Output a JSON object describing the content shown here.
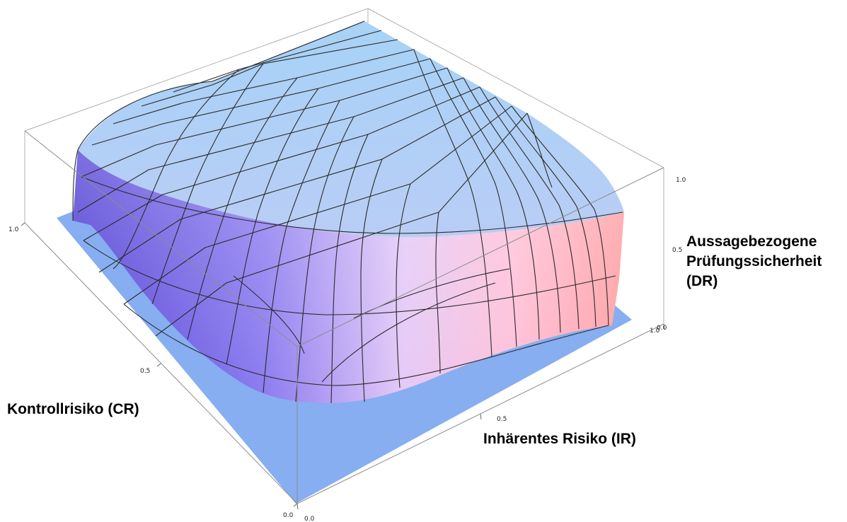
{
  "chart_data": {
    "type": "surface3d",
    "title": "",
    "xlabel": "Inhärentes Risiko (IR)",
    "ylabel": "Kontrollrisiko (CR)",
    "zlabel_lines": [
      "Aussagebezogene",
      "Prüfungssicherheit",
      "(DR)"
    ],
    "x_ticks": [
      "0.0",
      "0.5",
      "1.0"
    ],
    "y_ticks": [
      "0.0",
      "0.5",
      "1.0"
    ],
    "z_ticks": [
      "0.0",
      "0.5",
      "1.0"
    ],
    "xlim": [
      0,
      1
    ],
    "ylim": [
      0,
      1
    ],
    "zlim": [
      0,
      1
    ],
    "grid_divisions": 10,
    "colors": {
      "floor": "#86aef0",
      "surface_top": "#a8d0f5",
      "surface_left": "#5b4ad8",
      "surface_right": "#ffa9ad",
      "mesh": "#2a2a2a",
      "box": "#8c8c8c"
    }
  }
}
